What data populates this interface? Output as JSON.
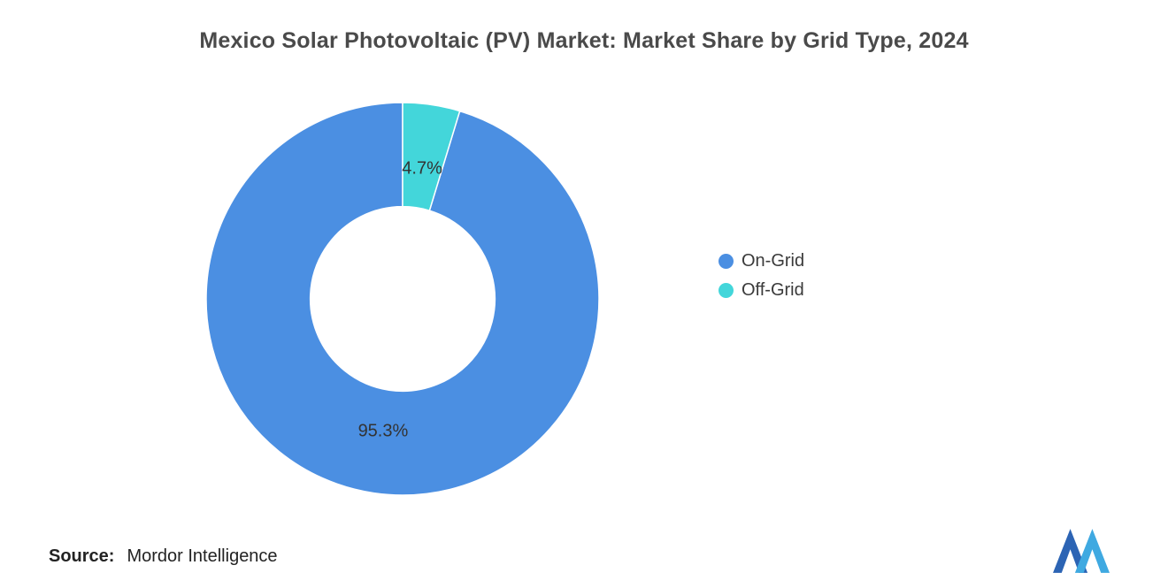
{
  "chart_data": {
    "type": "pie",
    "subtype": "donut",
    "title": "Mexico Solar Photovoltaic (PV) Market: Market Share by Grid Type, 2024",
    "labels": [
      "On-Grid",
      "Off-Grid"
    ],
    "values": [
      95.3,
      4.7
    ],
    "colors": [
      "#4B8FE2",
      "#43D6DA"
    ],
    "data_label_format": "{value}%",
    "start_angle_deg": 16.92,
    "direction": "clockwise",
    "inner_radius_ratio": 0.47,
    "legend_position": "right",
    "label_color": "#333333",
    "background": "#ffffff"
  },
  "source": {
    "label": "Source:",
    "name": "Mordor Intelligence"
  },
  "branding": {
    "logo": "mordor-intelligence-logo",
    "logo_color_dark": "#2C64B4",
    "logo_color_light": "#3FA9E1"
  }
}
